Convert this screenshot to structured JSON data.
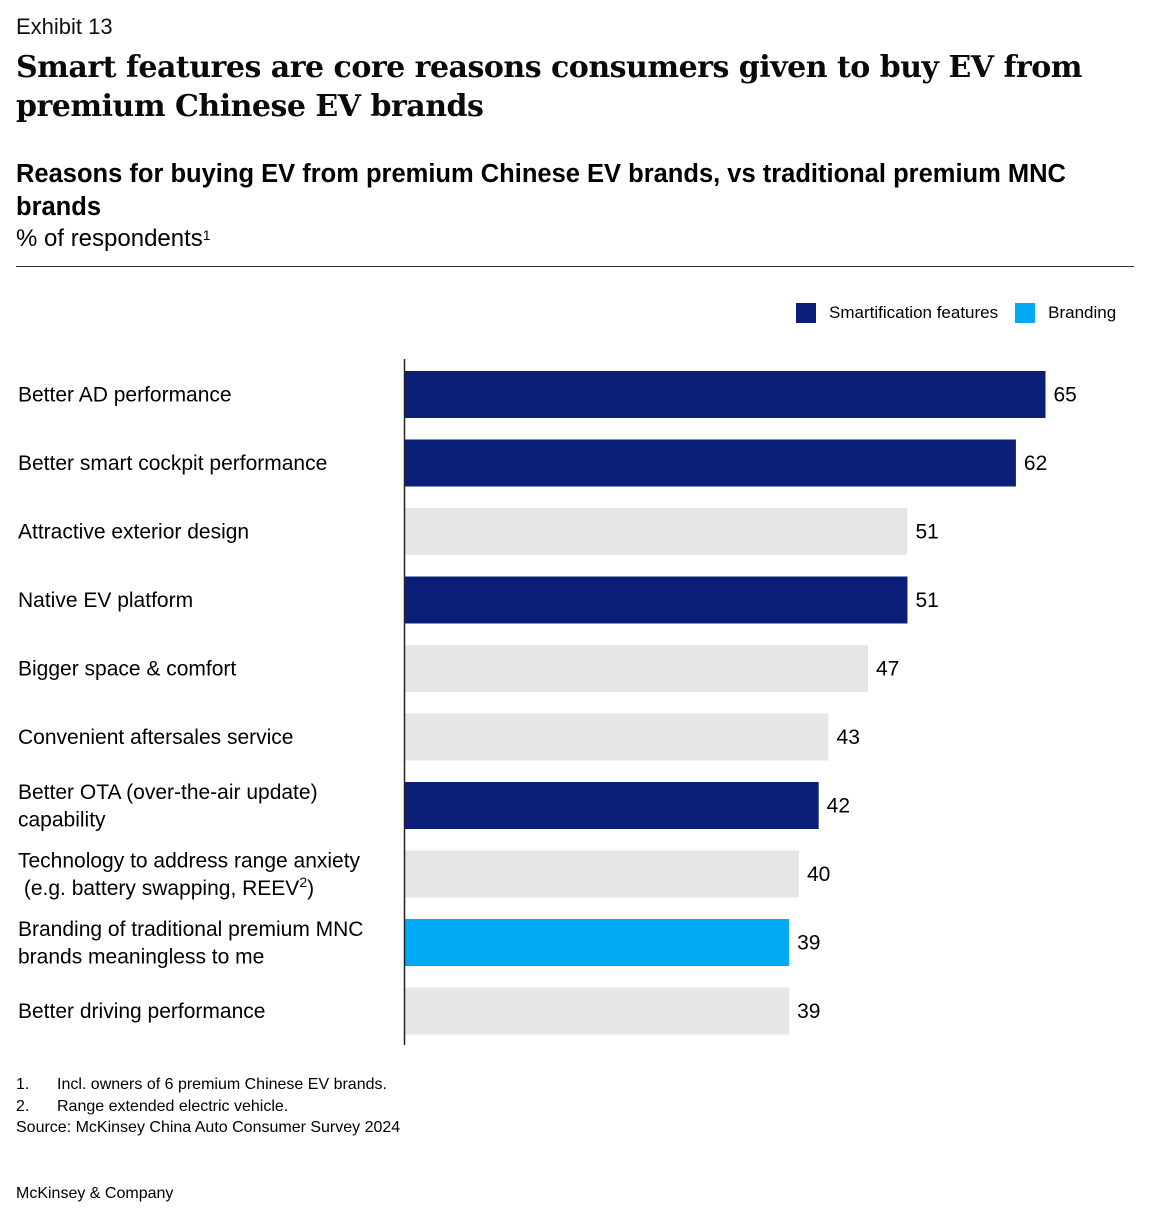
{
  "exhibit": "Exhibit 13",
  "headline": "Smart features are core reasons consumers given to buy EV from premium Chinese EV brands",
  "chart_data": {
    "type": "bar",
    "orientation": "horizontal",
    "title": "Reasons for buying EV from premium Chinese EV brands, vs traditional premium MNC brands",
    "unit": "% of respondents",
    "unit_footnote": "1",
    "legend": [
      {
        "name": "Smartification features",
        "color": "#0b1f78"
      },
      {
        "name": "Branding",
        "color": "#00a9f4"
      }
    ],
    "other_color": "#e5e6e8",
    "xlim": [
      0,
      65
    ],
    "categories": [
      {
        "lines": [
          "Better AD performance"
        ],
        "sup": "",
        "value": 65,
        "group": "Smartification features"
      },
      {
        "lines": [
          "Better smart cockpit performance"
        ],
        "sup": "",
        "value": 62,
        "group": "Smartification features"
      },
      {
        "lines": [
          "Attractive exterior design"
        ],
        "sup": "",
        "value": 51,
        "group": "Other"
      },
      {
        "lines": [
          "Native EV platform"
        ],
        "sup": "",
        "value": 51,
        "group": "Smartification features"
      },
      {
        "lines": [
          "Bigger space & comfort"
        ],
        "sup": "",
        "value": 47,
        "group": "Other"
      },
      {
        "lines": [
          "Convenient aftersales service"
        ],
        "sup": "",
        "value": 43,
        "group": "Other"
      },
      {
        "lines": [
          "Better OTA (over-the-air update)",
          "capability"
        ],
        "sup": "",
        "value": 42,
        "group": "Smartification features"
      },
      {
        "lines": [
          "Technology to address range anxiety",
          " (e.g. battery swapping, REEV"
        ],
        "sup": "2",
        "sup_after": ")",
        "value": 40,
        "group": "Other"
      },
      {
        "lines": [
          "Branding of traditional premium MNC",
          "brands meaningless to me"
        ],
        "sup": "",
        "value": 39,
        "group": "Branding"
      },
      {
        "lines": [
          "Better driving performance"
        ],
        "sup": "",
        "value": 39,
        "group": "Other"
      }
    ]
  },
  "footnotes": [
    {
      "num": "1.",
      "text": "Incl. owners of 6 premium Chinese EV brands."
    },
    {
      "num": "2.",
      "text": "Range extended electric vehicle."
    }
  ],
  "source": "Source: McKinsey China Auto Consumer Survey 2024",
  "company": "McKinsey & Company"
}
